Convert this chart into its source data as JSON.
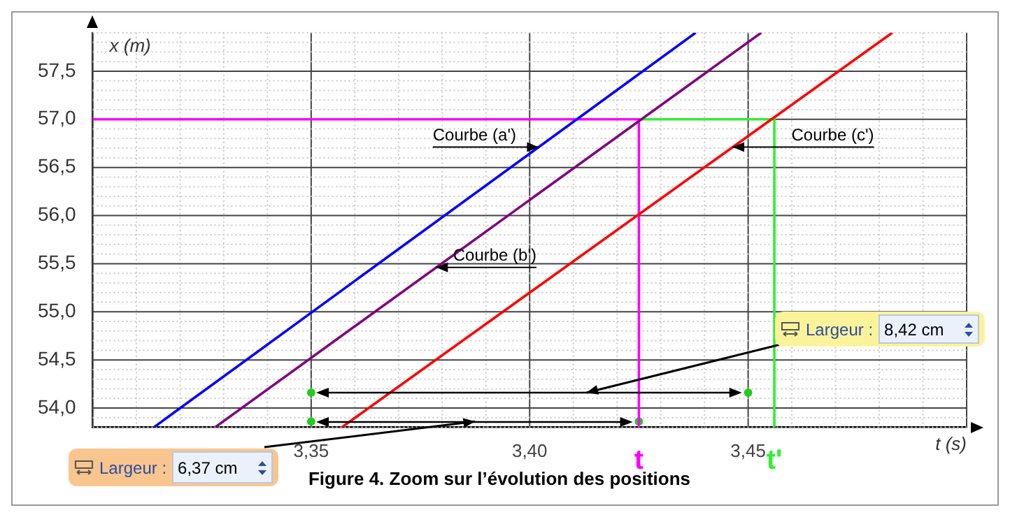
{
  "chart_data": {
    "type": "line",
    "title": "Figure 4. Zoom sur l’évolution des positions",
    "xlabel": "t (s)",
    "ylabel": "x (m)",
    "xlim": [
      3.3,
      3.5
    ],
    "ylim": [
      53.8,
      57.9
    ],
    "xticks": [
      {
        "value": 3.3,
        "label": null
      },
      {
        "value": 3.31,
        "label": null
      },
      {
        "value": 3.32,
        "label": null
      },
      {
        "value": 3.33,
        "label": null
      },
      {
        "value": 3.34,
        "label": null
      },
      {
        "value": 3.35,
        "label": "3,35"
      },
      {
        "value": 3.36,
        "label": null
      },
      {
        "value": 3.37,
        "label": null
      },
      {
        "value": 3.38,
        "label": null
      },
      {
        "value": 3.39,
        "label": null
      },
      {
        "value": 3.4,
        "label": "3,40"
      },
      {
        "value": 3.41,
        "label": null
      },
      {
        "value": 3.42,
        "label": null
      },
      {
        "value": 3.43,
        "label": null
      },
      {
        "value": 3.44,
        "label": null
      },
      {
        "value": 3.45,
        "label": "3,45"
      },
      {
        "value": 3.46,
        "label": null
      },
      {
        "value": 3.47,
        "label": null
      },
      {
        "value": 3.48,
        "label": null
      },
      {
        "value": 3.49,
        "label": null
      },
      {
        "value": 3.5,
        "label": null
      }
    ],
    "yticks": [
      {
        "value": 53.8,
        "label": null
      },
      {
        "value": 53.9,
        "label": null
      },
      {
        "value": 54.0,
        "label": "54,0"
      },
      {
        "value": 54.1,
        "label": null
      },
      {
        "value": 54.2,
        "label": null
      },
      {
        "value": 54.3,
        "label": null
      },
      {
        "value": 54.4,
        "label": null
      },
      {
        "value": 54.5,
        "label": "54,5"
      },
      {
        "value": 54.6,
        "label": null
      },
      {
        "value": 54.7,
        "label": null
      },
      {
        "value": 54.8,
        "label": null
      },
      {
        "value": 54.9,
        "label": null
      },
      {
        "value": 55.0,
        "label": "55,0"
      },
      {
        "value": 55.1,
        "label": null
      },
      {
        "value": 55.2,
        "label": null
      },
      {
        "value": 55.3,
        "label": null
      },
      {
        "value": 55.4,
        "label": null
      },
      {
        "value": 55.5,
        "label": "55,5"
      },
      {
        "value": 55.6,
        "label": null
      },
      {
        "value": 55.7,
        "label": null
      },
      {
        "value": 55.8,
        "label": null
      },
      {
        "value": 55.9,
        "label": null
      },
      {
        "value": 56.0,
        "label": "56,0"
      },
      {
        "value": 56.1,
        "label": null
      },
      {
        "value": 56.2,
        "label": null
      },
      {
        "value": 56.3,
        "label": null
      },
      {
        "value": 56.4,
        "label": null
      },
      {
        "value": 56.5,
        "label": "56,5"
      },
      {
        "value": 56.6,
        "label": null
      },
      {
        "value": 56.7,
        "label": null
      },
      {
        "value": 56.8,
        "label": null
      },
      {
        "value": 56.9,
        "label": null
      },
      {
        "value": 57.0,
        "label": "57,0"
      },
      {
        "value": 57.1,
        "label": null
      },
      {
        "value": 57.2,
        "label": null
      },
      {
        "value": 57.3,
        "label": null
      },
      {
        "value": 57.4,
        "label": null
      },
      {
        "value": 57.5,
        "label": "57,5"
      },
      {
        "value": 57.6,
        "label": null
      },
      {
        "value": 57.7,
        "label": null
      },
      {
        "value": 57.8,
        "label": null
      },
      {
        "value": 57.9,
        "label": null
      }
    ],
    "grid": true,
    "legend": false,
    "series": [
      {
        "name": "Courbe (a')",
        "color": "#0000ff",
        "x": [
          3.314,
          3.438
        ],
        "values": [
          53.8,
          57.9
        ]
      },
      {
        "name": "Courbe (b')",
        "color": "#800080",
        "x": [
          3.328,
          3.453
        ],
        "values": [
          53.8,
          57.9
        ]
      },
      {
        "name": "Courbe (c')",
        "color": "#ff0000",
        "x": [
          3.357,
          3.483
        ],
        "values": [
          53.8,
          57.9
        ]
      },
      {
        "color": "#ff00ff",
        "x": [
          3.3,
          3.425,
          3.425
        ],
        "values": [
          57.0,
          57.0,
          53.8
        ]
      },
      {
        "color": "#33ee33",
        "x": [
          3.425,
          3.456,
          3.456
        ],
        "values": [
          57.0,
          57.0,
          53.8
        ]
      },
      {
        "type": "scatter",
        "color": "#22cc22",
        "x": [
          3.35,
          3.425,
          3.35,
          3.45
        ],
        "values": [
          53.86,
          53.86,
          54.16,
          54.16
        ]
      }
    ],
    "annotations": [
      {
        "text": "t",
        "x": 3.425,
        "y": 53.8
      },
      {
        "text": "t'",
        "x": 3.456,
        "y": 53.8
      },
      "Largeur :",
      "6,37 cm",
      "Largeur :",
      "8,42 cm"
    ]
  }
}
